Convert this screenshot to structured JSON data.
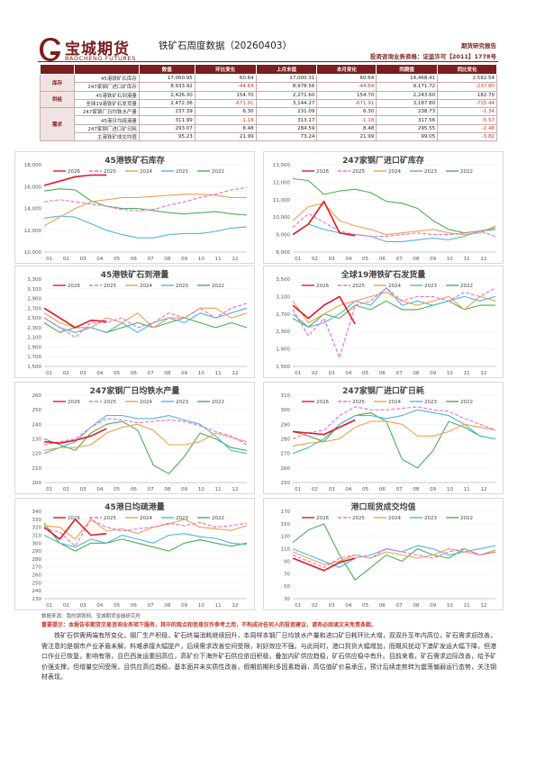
{
  "header": {
    "logo_cn": "宝城期货",
    "logo_en": "BAOCHENG FUTURES",
    "title": "铁矿石周度数据（20260403）",
    "report_tag": "期货研究报告",
    "license": "投资咨询业务资格：证监许可【2011】1778号"
  },
  "table": {
    "headers": [
      "",
      "",
      "数值",
      "环比变化",
      "上月末值",
      "本月变化",
      "同期值",
      "同比变化"
    ],
    "groups": [
      {
        "category": "库存",
        "rows": [
          {
            "name": "45港铁矿石库存",
            "value": "17,060.95",
            "wow": "60.64",
            "prev_month": "17,000.31",
            "mom": "60.64",
            "yoy_value": "14,468.41",
            "yoy": "2,592.54"
          },
          {
            "name": "247家钢厂进口矿库存",
            "value": "8,933.92",
            "wow": "-44.64",
            "prev_month": "8,978.56",
            "mom": "-44.64",
            "yoy_value": "9,171.72",
            "yoy": "-237.80"
          }
        ]
      },
      {
        "category": "供给",
        "rows": [
          {
            "name": "45港铁矿石到港量",
            "value": "2,426.30",
            "wow": "154.70",
            "prev_month": "2,271.60",
            "mom": "154.70",
            "yoy_value": "2,243.60",
            "yoy": "182.70"
          },
          {
            "name": "全球19港铁矿石发货量",
            "value": "2,472.36",
            "wow": "-671.91",
            "prev_month": "3,144.27",
            "mom": "-671.91",
            "yoy_value": "3,187.80",
            "yoy": "-715.44"
          }
        ]
      },
      {
        "category": "需求",
        "rows": [
          {
            "name": "247家钢厂日均铁水产量",
            "value": "237.39",
            "wow": "6.30",
            "prev_month": "231.09",
            "mom": "6.30",
            "yoy_value": "238.73",
            "yoy": "-1.34"
          },
          {
            "name": "45港日均疏港量",
            "value": "311.99",
            "wow": "-1.18",
            "prev_month": "313.17",
            "mom": "-1.18",
            "yoy_value": "317.56",
            "yoy": "-5.57"
          },
          {
            "name": "247家钢厂进口矿日耗",
            "value": "293.07",
            "wow": "8.48",
            "prev_month": "284.59",
            "mom": "8.48",
            "yoy_value": "295.55",
            "yoy": "-2.48"
          },
          {
            "name": "主港铁矿成交均值",
            "value": "95.23",
            "wow": "21.99",
            "prev_month": "73.24",
            "mom": "21.99",
            "yoy_value": "99.05",
            "yoy": "-3.82"
          }
        ]
      }
    ]
  },
  "legend": [
    "2026",
    "2025",
    "2024",
    "2023",
    "2022"
  ],
  "colors": {
    "brand": "#7a1e1e",
    "s2026": "#e8161f",
    "s2025": "#e86bd9",
    "s2024": "#f0a04b",
    "s2023": "#4fb5e0",
    "s2022": "#4caf50"
  },
  "chart_data": [
    {
      "type": "line",
      "title": "45港铁矿石库存",
      "x_ticks": [
        "01",
        "02",
        "03",
        "04",
        "05",
        "06",
        "07",
        "08",
        "09",
        "10",
        "11",
        "12"
      ],
      "y_ticks": [
        "10,000",
        "12,000",
        "14,000",
        "16,000",
        "18,000"
      ],
      "ylim": [
        10000,
        18000
      ],
      "series": [
        {
          "name": "2026",
          "values": [
            16100,
            16500,
            16900,
            17050,
            17061
          ]
        },
        {
          "name": "2025",
          "values": [
            14600,
            14800,
            14600,
            14400,
            14200,
            13900,
            13800,
            13900,
            14300,
            14600,
            15000,
            15300,
            15700,
            15900
          ]
        },
        {
          "name": "2024",
          "values": [
            12400,
            13200,
            14000,
            14600,
            14800,
            15000,
            15000,
            15100,
            15200,
            15300,
            15300,
            15200,
            15000,
            15000
          ]
        },
        {
          "name": "2023",
          "values": [
            13100,
            13300,
            13200,
            12600,
            12000,
            11600,
            11300,
            11300,
            11600,
            11700,
            11700,
            11900,
            12200,
            12300
          ]
        },
        {
          "name": "2022",
          "values": [
            15600,
            15800,
            15700,
            14700,
            14200,
            14000,
            14000,
            13800,
            13600,
            13500,
            13600,
            13700,
            13500,
            13400
          ]
        }
      ]
    },
    {
      "type": "line",
      "title": "247家钢厂进口矿库存",
      "x_ticks": [
        "01",
        "02",
        "03",
        "04",
        "05",
        "06",
        "07",
        "08",
        "09",
        "10",
        "11",
        "12"
      ],
      "y_ticks": [
        "8,000",
        "9,000",
        "10,000",
        "11,000",
        "12,000",
        "13,000"
      ],
      "ylim": [
        8000,
        13000
      ],
      "series": [
        {
          "name": "2026",
          "values": [
            9000,
            9600,
            10900,
            9100,
            8934
          ]
        },
        {
          "name": "2025",
          "values": [
            9400,
            10200,
            9700,
            9200,
            9000,
            8900,
            8900,
            9000,
            9100,
            9000,
            9000,
            9100,
            9200,
            8900
          ]
        },
        {
          "name": "2024",
          "values": [
            9800,
            10600,
            10800,
            9800,
            9500,
            9300,
            9000,
            9100,
            9200,
            9300,
            9100,
            9000,
            9100,
            9500
          ]
        },
        {
          "name": "2023",
          "values": [
            9000,
            9600,
            9300,
            9100,
            9000,
            8900,
            8600,
            8600,
            8700,
            8800,
            8700,
            8900,
            9200,
            9400
          ]
        },
        {
          "name": "2022",
          "values": [
            12200,
            12100,
            11300,
            11500,
            11600,
            11400,
            10900,
            10800,
            10500,
            9800,
            9300,
            9100,
            9200,
            9300
          ]
        }
      ]
    },
    {
      "type": "line",
      "title": "45港铁矿石到港量",
      "x_ticks": [
        "01",
        "02",
        "03",
        "04",
        "05",
        "06",
        "07",
        "08",
        "09",
        "10",
        "11",
        "12"
      ],
      "y_ticks": [
        "1,500",
        "1,700",
        "1,900",
        "2,100",
        "2,300",
        "2,500",
        "2,700",
        "2,900",
        "3,100",
        "3,300"
      ],
      "ylim": [
        1500,
        3300
      ],
      "series": [
        {
          "name": "2026",
          "values": [
            2700,
            2500,
            2300,
            2450,
            2426
          ]
        },
        {
          "name": "2025",
          "values": [
            2500,
            2300,
            2100,
            2400,
            2400,
            2500,
            2300,
            2400,
            2600,
            2500,
            2700,
            2500,
            2700,
            2800
          ]
        },
        {
          "name": "2024",
          "values": [
            2600,
            2400,
            2300,
            2300,
            2500,
            2400,
            2600,
            2300,
            2500,
            2500,
            2700,
            2700,
            2500,
            2600
          ]
        },
        {
          "name": "2023",
          "values": [
            2500,
            2300,
            2200,
            2300,
            2200,
            2400,
            2200,
            2400,
            2500,
            2400,
            2600,
            2500,
            2600,
            2700
          ]
        },
        {
          "name": "2022",
          "values": [
            2400,
            2200,
            2300,
            2300,
            2200,
            2300,
            2400,
            2300,
            2400,
            2500,
            2400,
            2300,
            2400,
            2300
          ]
        }
      ]
    },
    {
      "type": "line",
      "title": "全球19港铁矿石发货量",
      "x_ticks": [
        "01",
        "02",
        "03",
        "04",
        "05",
        "06",
        "07",
        "08",
        "09",
        "10",
        "11",
        "12"
      ],
      "y_ticks": [
        "1,500",
        "1,900",
        "2,300",
        "2,700",
        "3,100",
        "3,500"
      ],
      "ylim": [
        1500,
        3500
      ],
      "series": [
        {
          "name": "2026",
          "values": [
            2900,
            2600,
            2900,
            3100,
            2472
          ]
        },
        {
          "name": "2025",
          "values": [
            2800,
            2200,
            2600,
            1700,
            2900,
            3000,
            3300,
            3000,
            3100,
            3100,
            3000,
            3200,
            3100,
            3300
          ]
        },
        {
          "name": "2024",
          "values": [
            3000,
            2500,
            2700,
            2900,
            3000,
            3100,
            3200,
            3000,
            2900,
            3000,
            3100,
            2800,
            3100,
            3000
          ]
        },
        {
          "name": "2023",
          "values": [
            2700,
            2400,
            2500,
            2700,
            3000,
            2900,
            3300,
            2900,
            3000,
            2900,
            3000,
            3100,
            3000,
            3100
          ]
        },
        {
          "name": "2022",
          "values": [
            2600,
            2400,
            2700,
            2600,
            2900,
            2800,
            3000,
            2800,
            2800,
            2900,
            3000,
            2800,
            2900,
            2900
          ]
        }
      ]
    },
    {
      "type": "line",
      "title": "247家钢厂日均铁水产量",
      "x_ticks": [
        "01",
        "02",
        "03",
        "04",
        "05",
        "06",
        "07",
        "08",
        "09",
        "10",
        "11",
        "12"
      ],
      "y_ticks": [
        "200",
        "210",
        "220",
        "230",
        "240",
        "250",
        "260"
      ],
      "ylim": [
        200,
        260
      ],
      "series": [
        {
          "name": "2026",
          "values": [
            228,
            227,
            229,
            232,
            237
          ]
        },
        {
          "name": "2025",
          "values": [
            226,
            228,
            230,
            238,
            244,
            243,
            241,
            242,
            243,
            242,
            239,
            235,
            232,
            226
          ]
        },
        {
          "name": "2024",
          "values": [
            222,
            224,
            224,
            226,
            234,
            238,
            240,
            236,
            226,
            226,
            228,
            234,
            231,
            228
          ]
        },
        {
          "name": "2023",
          "values": [
            220,
            224,
            228,
            238,
            246,
            246,
            244,
            244,
            246,
            243,
            240,
            232,
            222,
            220
          ]
        },
        {
          "name": "2022",
          "values": [
            230,
            226,
            222,
            234,
            240,
            242,
            236,
            212,
            206,
            218,
            234,
            230,
            224,
            222
          ]
        }
      ]
    },
    {
      "type": "line",
      "title": "247家钢厂进口矿日耗",
      "x_ticks": [
        "01",
        "02",
        "03",
        "04",
        "05",
        "06",
        "07",
        "08",
        "09",
        "10",
        "11",
        "12"
      ],
      "y_ticks": [
        "250",
        "260",
        "270",
        "280",
        "290",
        "300",
        "310"
      ],
      "ylim": [
        250,
        310
      ],
      "series": [
        {
          "name": "2026",
          "values": [
            285,
            284,
            283,
            288,
            293
          ]
        },
        {
          "name": "2025",
          "values": [
            280,
            284,
            286,
            296,
            302,
            300,
            300,
            301,
            302,
            300,
            299,
            294,
            290,
            286
          ]
        },
        {
          "name": "2024",
          "values": [
            275,
            277,
            278,
            280,
            288,
            292,
            292,
            290,
            282,
            282,
            285,
            290,
            288,
            286
          ]
        },
        {
          "name": "2023",
          "values": [
            270,
            274,
            280,
            290,
            296,
            296,
            294,
            296,
            300,
            298,
            296,
            290,
            282,
            280
          ]
        },
        {
          "name": "2022",
          "values": [
            285,
            282,
            278,
            290,
            296,
            298,
            292,
            266,
            260,
            272,
            292,
            288,
            282,
            280
          ]
        }
      ]
    },
    {
      "type": "line",
      "title": "45港日均疏港量",
      "x_ticks": [
        "01",
        "02",
        "03",
        "04",
        "05",
        "06",
        "07",
        "08",
        "09",
        "10",
        "11",
        "12"
      ],
      "y_ticks": [
        "230",
        "240",
        "250",
        "260",
        "270",
        "280",
        "290",
        "300",
        "310",
        "320",
        "330",
        "340"
      ],
      "ylim": [
        230,
        340
      ],
      "series": [
        {
          "name": "2026",
          "values": [
            320,
            305,
            330,
            310,
            312
          ]
        },
        {
          "name": "2025",
          "values": [
            318,
            314,
            296,
            330,
            320,
            315,
            318,
            320,
            325,
            322,
            326,
            320,
            322,
            325
          ]
        },
        {
          "name": "2024",
          "values": [
            322,
            320,
            305,
            330,
            315,
            318,
            312,
            320,
            324,
            330,
            320,
            318,
            316,
            322
          ]
        },
        {
          "name": "2023",
          "values": [
            310,
            300,
            295,
            305,
            300,
            310,
            305,
            300,
            310,
            312,
            308,
            306,
            300,
            298
          ]
        },
        {
          "name": "2022",
          "values": [
            325,
            300,
            290,
            300,
            300,
            305,
            300,
            295,
            290,
            300,
            304,
            300,
            296,
            300
          ]
        }
      ]
    },
    {
      "type": "line",
      "title": "港口现货成交均值",
      "x_ticks": [
        "01",
        "02",
        "03",
        "04",
        "05",
        "06",
        "07",
        "08",
        "09",
        "10",
        "11",
        "12"
      ],
      "y_ticks": [
        "30",
        "50",
        "70",
        "90",
        "110",
        "130",
        "150",
        "170"
      ],
      "ylim": [
        30,
        170
      ],
      "series": [
        {
          "name": "2026",
          "values": [
            95,
            85,
            75,
            88,
            95
          ]
        },
        {
          "name": "2025",
          "values": [
            100,
            90,
            80,
            95,
            100,
            95,
            110,
            105,
            100,
            95,
            105,
            110,
            100,
            105
          ]
        },
        {
          "name": "2024",
          "values": [
            105,
            95,
            85,
            90,
            100,
            95,
            105,
            100,
            95,
            100,
            110,
            105,
            100,
            108
          ]
        },
        {
          "name": "2023",
          "values": [
            110,
            100,
            90,
            80,
            95,
            100,
            110,
            105,
            115,
            110,
            100,
            105,
            110,
            115
          ]
        },
        {
          "name": "2022",
          "values": [
            120,
            140,
            150,
            100,
            60,
            80,
            100,
            90,
            110,
            100,
            95,
            110,
            100,
            105
          ]
        }
      ]
    }
  ],
  "footer": {
    "source": "数据来源：我的钢铁网、宝城期货金融研究所",
    "disclaimer": "重要提示：本报告非期货交易咨询业务项下服务，其中的观点和信息仅作参考之用，不构成对任何人的投资建议，请务必阅读文末免责条款。",
    "analysis": "铁矿石供需两端有所变化，钢厂生产积极，矿石终端消耗继续回升，本周样本钢厂日均铁水产量和进口矿日耗环比大增，双双升至年内高位，矿石需求迎改善，需注意的是钢市产业矛盾未解，料难承接大幅提产，后续需求改善空间受限，利好效应不强。与此同时，港口到货大幅增加，而飓风扰动下澳矿发运大幅下降，但港口作业已恢复，影响有限，且巴西发运重回高位，高矿价下海外矿石供应依旧积极，叠加内矿供应趋稳，矿石供应稳中有升。目前来看，矿石需求边际改善，给予矿价强支撑，但增量空间受限，且供应高位趋稳，基本面并未实质性改善，假期前期利多因素趋弱，高估值矿价易承压，预计后续走势转为震荡偏弱运行态势，关注钢材表现。"
  }
}
